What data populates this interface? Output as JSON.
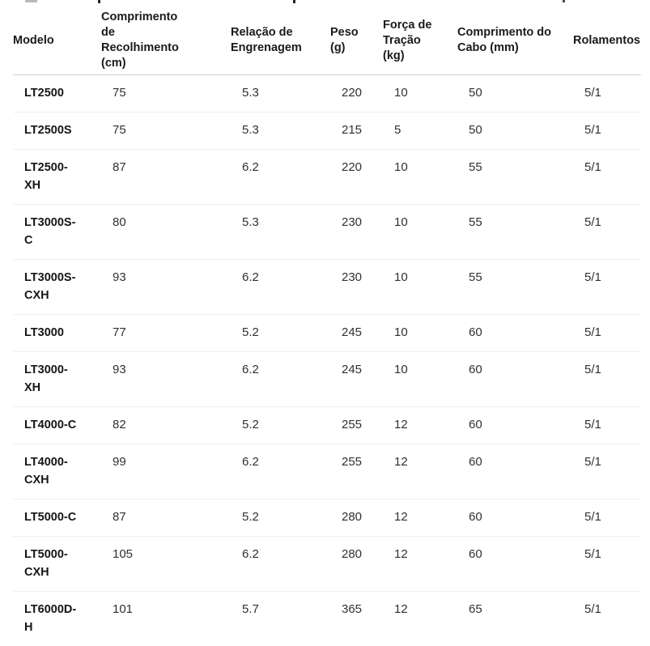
{
  "table": {
    "columns": [
      {
        "label": "Modelo"
      },
      {
        "label": "Comprimento de Recolhimento (cm)"
      },
      {
        "label": "Relação de Engrenagem"
      },
      {
        "label": "Peso (g)"
      },
      {
        "label": "Força de Tração (kg)"
      },
      {
        "label": "Comprimento do Cabo (mm)"
      },
      {
        "label": "Rolamentos"
      }
    ],
    "rows": [
      {
        "model": "LT2500",
        "values": [
          "75",
          "5.3",
          "220",
          "10",
          "50",
          "5/1"
        ]
      },
      {
        "model": "LT2500S",
        "values": [
          "75",
          "5.3",
          "215",
          "5",
          "50",
          "5/1"
        ]
      },
      {
        "model": "LT2500-XH",
        "values": [
          "87",
          "6.2",
          "220",
          "10",
          "55",
          "5/1"
        ]
      },
      {
        "model": "LT3000S-C",
        "values": [
          "80",
          "5.3",
          "230",
          "10",
          "55",
          "5/1"
        ]
      },
      {
        "model": "LT3000S-CXH",
        "values": [
          "93",
          "6.2",
          "230",
          "10",
          "55",
          "5/1"
        ]
      },
      {
        "model": "LT3000",
        "values": [
          "77",
          "5.2",
          "245",
          "10",
          "60",
          "5/1"
        ]
      },
      {
        "model": "LT3000-XH",
        "values": [
          "93",
          "6.2",
          "245",
          "10",
          "60",
          "5/1"
        ]
      },
      {
        "model": "LT4000-C",
        "values": [
          "82",
          "5.2",
          "255",
          "12",
          "60",
          "5/1"
        ]
      },
      {
        "model": "LT4000-CXH",
        "values": [
          "99",
          "6.2",
          "255",
          "12",
          "60",
          "5/1"
        ]
      },
      {
        "model": "LT5000-C",
        "values": [
          "87",
          "5.2",
          "280",
          "12",
          "60",
          "5/1"
        ]
      },
      {
        "model": "LT5000-CXH",
        "values": [
          "105",
          "6.2",
          "280",
          "12",
          "60",
          "5/1"
        ]
      },
      {
        "model": "LT6000D-H",
        "values": [
          "101",
          "5.7",
          "365",
          "12",
          "65",
          "5/1"
        ]
      }
    ]
  },
  "colors": {
    "header_text": "#1a1a1a",
    "body_text": "#303030",
    "header_border": "#cfcfcf",
    "row_border": "#efefef",
    "background": "#ffffff"
  }
}
